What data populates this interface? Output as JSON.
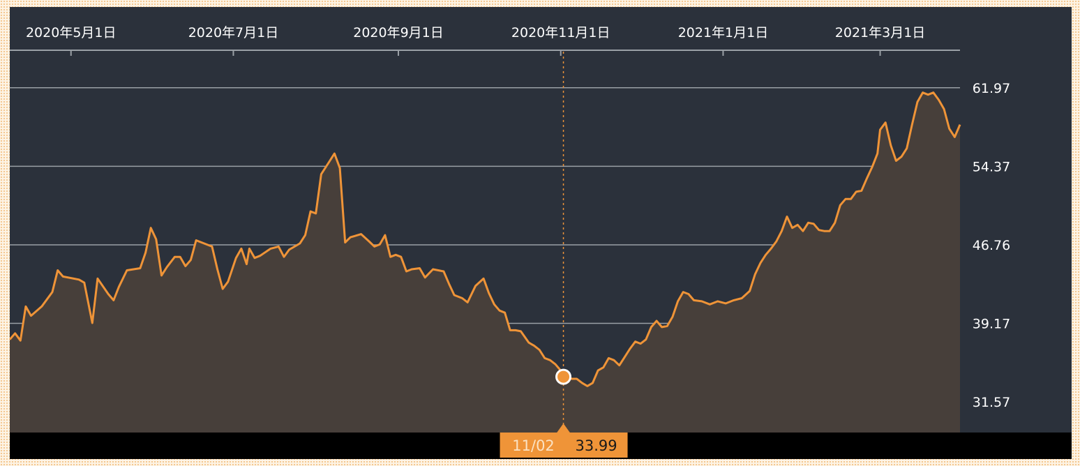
{
  "colors": {
    "background": "#2b313b",
    "line": "#ef9438",
    "area": "#473f3a",
    "grid": "#9aa0a6",
    "bottom_bar": "#000000",
    "tooltip_bg": "#ef9438",
    "text": "#ffffff"
  },
  "cursor": {
    "date_label": "11/02",
    "value_label": "33.99",
    "x": "2020-11-02",
    "y": 33.99
  },
  "chart_data": {
    "type": "area",
    "title": "",
    "xlabel": "",
    "ylabel": "",
    "ylim": [
      28.6,
      65.6
    ],
    "xlim": [
      "2020-04-08",
      "2021-03-31"
    ],
    "grid": true,
    "y_ticks": [
      {
        "value": 61.97,
        "label": "61.97"
      },
      {
        "value": 54.37,
        "label": "54.37"
      },
      {
        "value": 46.76,
        "label": "46.76"
      },
      {
        "value": 39.17,
        "label": "39.17"
      },
      {
        "value": 31.57,
        "label": "31.57"
      }
    ],
    "x_ticks": [
      {
        "date": "2020-05-01",
        "label": "2020年5月1日"
      },
      {
        "date": "2020-07-01",
        "label": "2020年7月1日"
      },
      {
        "date": "2020-09-01",
        "label": "2020年9月1日"
      },
      {
        "date": "2020-11-01",
        "label": "2020年11月1日"
      },
      {
        "date": "2021-01-01",
        "label": "2021年1月1日"
      },
      {
        "date": "2021-03-01",
        "label": "2021年3月1日"
      }
    ],
    "series": [
      {
        "points": [
          [
            "2020-04-08",
            37.6
          ],
          [
            "2020-04-10",
            38.2
          ],
          [
            "2020-04-12",
            37.5
          ],
          [
            "2020-04-14",
            40.8
          ],
          [
            "2020-04-16",
            39.9
          ],
          [
            "2020-04-20",
            40.8
          ],
          [
            "2020-04-24",
            42.2
          ],
          [
            "2020-04-26",
            44.3
          ],
          [
            "2020-04-28",
            43.7
          ],
          [
            "2020-05-04",
            43.4
          ],
          [
            "2020-05-06",
            43.1
          ],
          [
            "2020-05-09",
            39.2
          ],
          [
            "2020-05-11",
            43.5
          ],
          [
            "2020-05-15",
            42.0
          ],
          [
            "2020-05-17",
            41.4
          ],
          [
            "2020-05-19",
            42.7
          ],
          [
            "2020-05-22",
            44.3
          ],
          [
            "2020-05-27",
            44.5
          ],
          [
            "2020-05-29",
            46.0
          ],
          [
            "2020-05-31",
            48.4
          ],
          [
            "2020-06-02",
            47.3
          ],
          [
            "2020-06-04",
            43.8
          ],
          [
            "2020-06-06",
            44.6
          ],
          [
            "2020-06-09",
            45.6
          ],
          [
            "2020-06-11",
            45.6
          ],
          [
            "2020-06-13",
            44.7
          ],
          [
            "2020-06-15",
            45.3
          ],
          [
            "2020-06-17",
            47.2
          ],
          [
            "2020-06-23",
            46.6
          ],
          [
            "2020-06-25",
            44.4
          ],
          [
            "2020-06-27",
            42.5
          ],
          [
            "2020-06-29",
            43.2
          ],
          [
            "2020-07-02",
            45.5
          ],
          [
            "2020-07-04",
            46.4
          ],
          [
            "2020-07-06",
            44.9
          ],
          [
            "2020-07-07",
            46.4
          ],
          [
            "2020-07-09",
            45.5
          ],
          [
            "2020-07-11",
            45.7
          ],
          [
            "2020-07-15",
            46.4
          ],
          [
            "2020-07-18",
            46.6
          ],
          [
            "2020-07-20",
            45.6
          ],
          [
            "2020-07-22",
            46.3
          ],
          [
            "2020-07-26",
            46.9
          ],
          [
            "2020-07-28",
            47.7
          ],
          [
            "2020-07-30",
            50.0
          ],
          [
            "2020-08-01",
            49.8
          ],
          [
            "2020-08-03",
            53.6
          ],
          [
            "2020-08-06",
            54.8
          ],
          [
            "2020-08-08",
            55.6
          ],
          [
            "2020-08-10",
            54.2
          ],
          [
            "2020-08-12",
            47.0
          ],
          [
            "2020-08-14",
            47.5
          ],
          [
            "2020-08-18",
            47.8
          ],
          [
            "2020-08-21",
            47.1
          ],
          [
            "2020-08-23",
            46.6
          ],
          [
            "2020-08-25",
            46.8
          ],
          [
            "2020-08-27",
            47.7
          ],
          [
            "2020-08-29",
            45.6
          ],
          [
            "2020-08-31",
            45.8
          ],
          [
            "2020-09-02",
            45.6
          ],
          [
            "2020-09-04",
            44.2
          ],
          [
            "2020-09-06",
            44.4
          ],
          [
            "2020-09-09",
            44.5
          ],
          [
            "2020-09-11",
            43.6
          ],
          [
            "2020-09-14",
            44.4
          ],
          [
            "2020-09-18",
            44.2
          ],
          [
            "2020-09-20",
            43.0
          ],
          [
            "2020-09-22",
            41.9
          ],
          [
            "2020-09-25",
            41.6
          ],
          [
            "2020-09-27",
            41.2
          ],
          [
            "2020-09-30",
            42.8
          ],
          [
            "2020-10-03",
            43.5
          ],
          [
            "2020-10-05",
            42.1
          ],
          [
            "2020-10-07",
            41.0
          ],
          [
            "2020-10-09",
            40.4
          ],
          [
            "2020-10-11",
            40.2
          ],
          [
            "2020-10-13",
            38.5
          ],
          [
            "2020-10-15",
            38.5
          ],
          [
            "2020-10-17",
            38.4
          ],
          [
            "2020-10-20",
            37.3
          ],
          [
            "2020-10-22",
            37.0
          ],
          [
            "2020-10-24",
            36.6
          ],
          [
            "2020-10-26",
            35.8
          ],
          [
            "2020-10-28",
            35.6
          ],
          [
            "2020-10-30",
            35.2
          ],
          [
            "2020-11-01",
            34.6
          ],
          [
            "2020-11-03",
            34.3
          ],
          [
            "2020-11-05",
            33.8
          ],
          [
            "2020-11-07",
            33.8
          ],
          [
            "2020-11-09",
            33.4
          ],
          [
            "2020-11-11",
            33.1
          ],
          [
            "2020-11-13",
            33.4
          ],
          [
            "2020-11-15",
            34.6
          ],
          [
            "2020-11-17",
            34.9
          ],
          [
            "2020-11-19",
            35.8
          ],
          [
            "2020-11-21",
            35.6
          ],
          [
            "2020-11-23",
            35.1
          ],
          [
            "2020-11-25",
            35.9
          ],
          [
            "2020-11-27",
            36.7
          ],
          [
            "2020-11-29",
            37.4
          ],
          [
            "2020-12-01",
            37.2
          ],
          [
            "2020-12-03",
            37.6
          ],
          [
            "2020-12-05",
            38.8
          ],
          [
            "2020-12-07",
            39.4
          ],
          [
            "2020-12-09",
            38.8
          ],
          [
            "2020-12-11",
            38.9
          ],
          [
            "2020-12-13",
            39.8
          ],
          [
            "2020-12-15",
            41.3
          ],
          [
            "2020-12-17",
            42.2
          ],
          [
            "2020-12-19",
            42.0
          ],
          [
            "2020-12-21",
            41.4
          ],
          [
            "2020-12-24",
            41.3
          ],
          [
            "2020-12-27",
            41.0
          ],
          [
            "2020-12-30",
            41.3
          ],
          [
            "2021-01-02",
            41.1
          ],
          [
            "2021-01-05",
            41.4
          ],
          [
            "2021-01-08",
            41.6
          ],
          [
            "2021-01-11",
            42.3
          ],
          [
            "2021-01-13",
            43.9
          ],
          [
            "2021-01-15",
            45.0
          ],
          [
            "2021-01-17",
            45.8
          ],
          [
            "2021-01-19",
            46.4
          ],
          [
            "2021-01-21",
            47.1
          ],
          [
            "2021-01-23",
            48.1
          ],
          [
            "2021-01-25",
            49.5
          ],
          [
            "2021-01-27",
            48.4
          ],
          [
            "2021-01-29",
            48.7
          ],
          [
            "2021-01-31",
            48.1
          ],
          [
            "2021-02-02",
            48.9
          ],
          [
            "2021-02-04",
            48.8
          ],
          [
            "2021-02-06",
            48.2
          ],
          [
            "2021-02-08",
            48.1
          ],
          [
            "2021-02-10",
            48.1
          ],
          [
            "2021-02-12",
            48.9
          ],
          [
            "2021-02-14",
            50.6
          ],
          [
            "2021-02-16",
            51.2
          ],
          [
            "2021-02-18",
            51.2
          ],
          [
            "2021-02-20",
            51.9
          ],
          [
            "2021-02-22",
            52.0
          ],
          [
            "2021-02-24",
            53.2
          ],
          [
            "2021-02-26",
            54.3
          ],
          [
            "2021-02-28",
            55.6
          ],
          [
            "2021-03-01",
            57.9
          ],
          [
            "2021-03-03",
            58.6
          ],
          [
            "2021-03-05",
            56.4
          ],
          [
            "2021-03-07",
            54.9
          ],
          [
            "2021-03-09",
            55.3
          ],
          [
            "2021-03-11",
            56.1
          ],
          [
            "2021-03-13",
            58.4
          ],
          [
            "2021-03-15",
            60.6
          ],
          [
            "2021-03-17",
            61.5
          ],
          [
            "2021-03-19",
            61.3
          ],
          [
            "2021-03-21",
            61.5
          ],
          [
            "2021-03-23",
            60.8
          ],
          [
            "2021-03-25",
            59.9
          ],
          [
            "2021-03-27",
            58.0
          ],
          [
            "2021-03-29",
            57.2
          ],
          [
            "2021-03-31",
            58.4
          ]
        ]
      }
    ]
  }
}
